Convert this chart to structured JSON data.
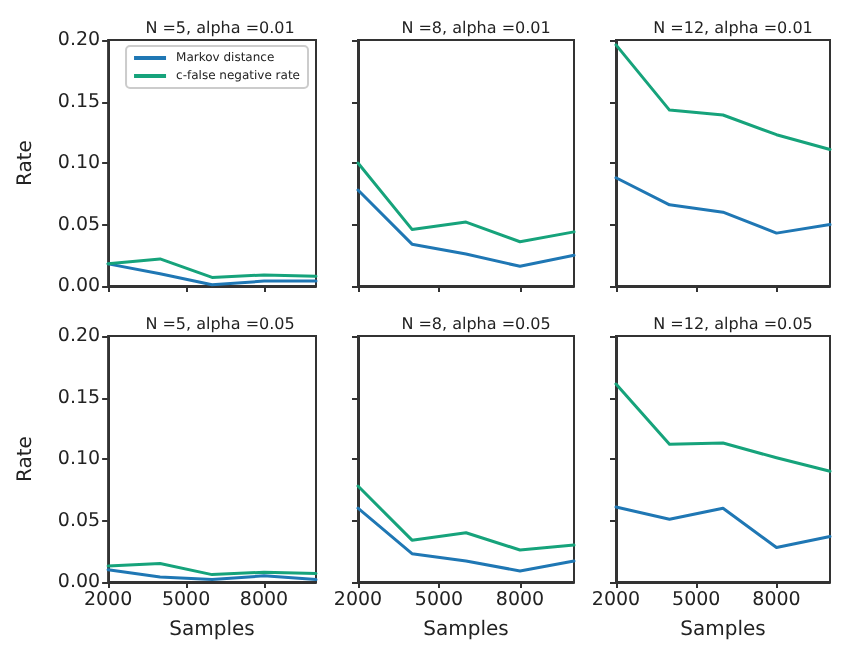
{
  "chart_data": [
    {
      "type": "line",
      "title": "N =5, alpha =0.01",
      "ylabel": "Rate",
      "x": [
        2000,
        4000,
        6000,
        8000,
        10000
      ],
      "xlim": [
        2000,
        10000
      ],
      "xticks": [
        2000,
        5000,
        8000
      ],
      "ylim": [
        0,
        0.2
      ],
      "yticks": [
        {
          "value": 0,
          "label": "0.00"
        },
        {
          "value": 0.05,
          "label": "0.05"
        },
        {
          "value": 0.1,
          "label": "0.10"
        },
        {
          "value": 0.15,
          "label": "0.15"
        },
        {
          "value": 0.2,
          "label": "0.20"
        }
      ],
      "tick_labels": "y",
      "legend": "top right",
      "series": [
        {
          "name": "Markov distance",
          "color": "#1f77b4",
          "values": [
            0.018,
            0.01,
            0.001,
            0.004,
            0.004
          ]
        },
        {
          "name": "c-false negative rate",
          "color": "#16a37b",
          "values": [
            0.018,
            0.022,
            0.007,
            0.009,
            0.008
          ]
        }
      ]
    },
    {
      "type": "line",
      "title": "N =8, alpha =0.01",
      "x": [
        2000,
        4000,
        6000,
        8000,
        10000
      ],
      "xlim": [
        2000,
        10000
      ],
      "xticks": [
        2000,
        5000,
        8000
      ],
      "ylim": [
        0,
        0.2
      ],
      "yticks": [
        0,
        0.05,
        0.1,
        0.15,
        0.2
      ],
      "tick_labels": false,
      "series": [
        {
          "color": "#1f77b4",
          "values": [
            0.078,
            0.034,
            0.026,
            0.016,
            0.025
          ]
        },
        {
          "color": "#16a37b",
          "values": [
            0.1,
            0.046,
            0.052,
            0.036,
            0.044
          ]
        }
      ]
    },
    {
      "type": "line",
      "title": "N =12, alpha =0.01",
      "x": [
        2000,
        4000,
        6000,
        8000,
        10000
      ],
      "xlim": [
        2000,
        10000
      ],
      "xticks": [
        2000,
        5000,
        8000
      ],
      "ylim": [
        0,
        0.2
      ],
      "yticks": [
        0,
        0.05,
        0.1,
        0.15,
        0.2
      ],
      "tick_labels": false,
      "series": [
        {
          "color": "#1f77b4",
          "values": [
            0.088,
            0.066,
            0.06,
            0.043,
            0.05
          ]
        },
        {
          "color": "#16a37b",
          "values": [
            0.196,
            0.143,
            0.139,
            0.123,
            0.111
          ]
        }
      ]
    },
    {
      "type": "line",
      "title": "N =5, alpha =0.05",
      "xlabel": "Samples",
      "ylabel": "Rate",
      "x": [
        2000,
        4000,
        6000,
        8000,
        10000
      ],
      "xlim": [
        2000,
        10000
      ],
      "xticks": [
        2000,
        5000,
        8000
      ],
      "ylim": [
        0,
        0.2
      ],
      "yticks": [
        {
          "value": 0,
          "label": "0.00"
        },
        {
          "value": 0.05,
          "label": "0.05"
        },
        {
          "value": 0.1,
          "label": "0.10"
        },
        {
          "value": 0.15,
          "label": "0.15"
        },
        {
          "value": 0.2,
          "label": "0.20"
        }
      ],
      "series": [
        {
          "color": "#1f77b4",
          "values": [
            0.01,
            0.004,
            0.002,
            0.005,
            0.002
          ]
        },
        {
          "color": "#16a37b",
          "values": [
            0.013,
            0.015,
            0.006,
            0.008,
            0.007
          ]
        }
      ]
    },
    {
      "type": "line",
      "title": "N =8, alpha =0.05",
      "xlabel": "Samples",
      "x": [
        2000,
        4000,
        6000,
        8000,
        10000
      ],
      "xlim": [
        2000,
        10000
      ],
      "xticks": [
        2000,
        5000,
        8000
      ],
      "ylim": [
        0,
        0.2
      ],
      "yticks": [
        0,
        0.05,
        0.1,
        0.15,
        0.2
      ],
      "tick_labels": "x",
      "series": [
        {
          "color": "#1f77b4",
          "values": [
            0.06,
            0.023,
            0.017,
            0.009,
            0.017
          ]
        },
        {
          "color": "#16a37b",
          "values": [
            0.078,
            0.034,
            0.04,
            0.026,
            0.03
          ]
        }
      ]
    },
    {
      "type": "line",
      "title": "N =12, alpha =0.05",
      "xlabel": "Samples",
      "x": [
        2000,
        4000,
        6000,
        8000,
        10000
      ],
      "xlim": [
        2000,
        10000
      ],
      "xticks": [
        2000,
        5000,
        8000
      ],
      "ylim": [
        0,
        0.2
      ],
      "yticks": [
        0,
        0.05,
        0.1,
        0.15,
        0.2
      ],
      "tick_labels": "x",
      "series": [
        {
          "color": "#1f77b4",
          "values": [
            0.061,
            0.051,
            0.06,
            0.028,
            0.037
          ]
        },
        {
          "color": "#16a37b",
          "values": [
            0.161,
            0.112,
            0.113,
            0.101,
            0.09
          ]
        }
      ]
    }
  ]
}
